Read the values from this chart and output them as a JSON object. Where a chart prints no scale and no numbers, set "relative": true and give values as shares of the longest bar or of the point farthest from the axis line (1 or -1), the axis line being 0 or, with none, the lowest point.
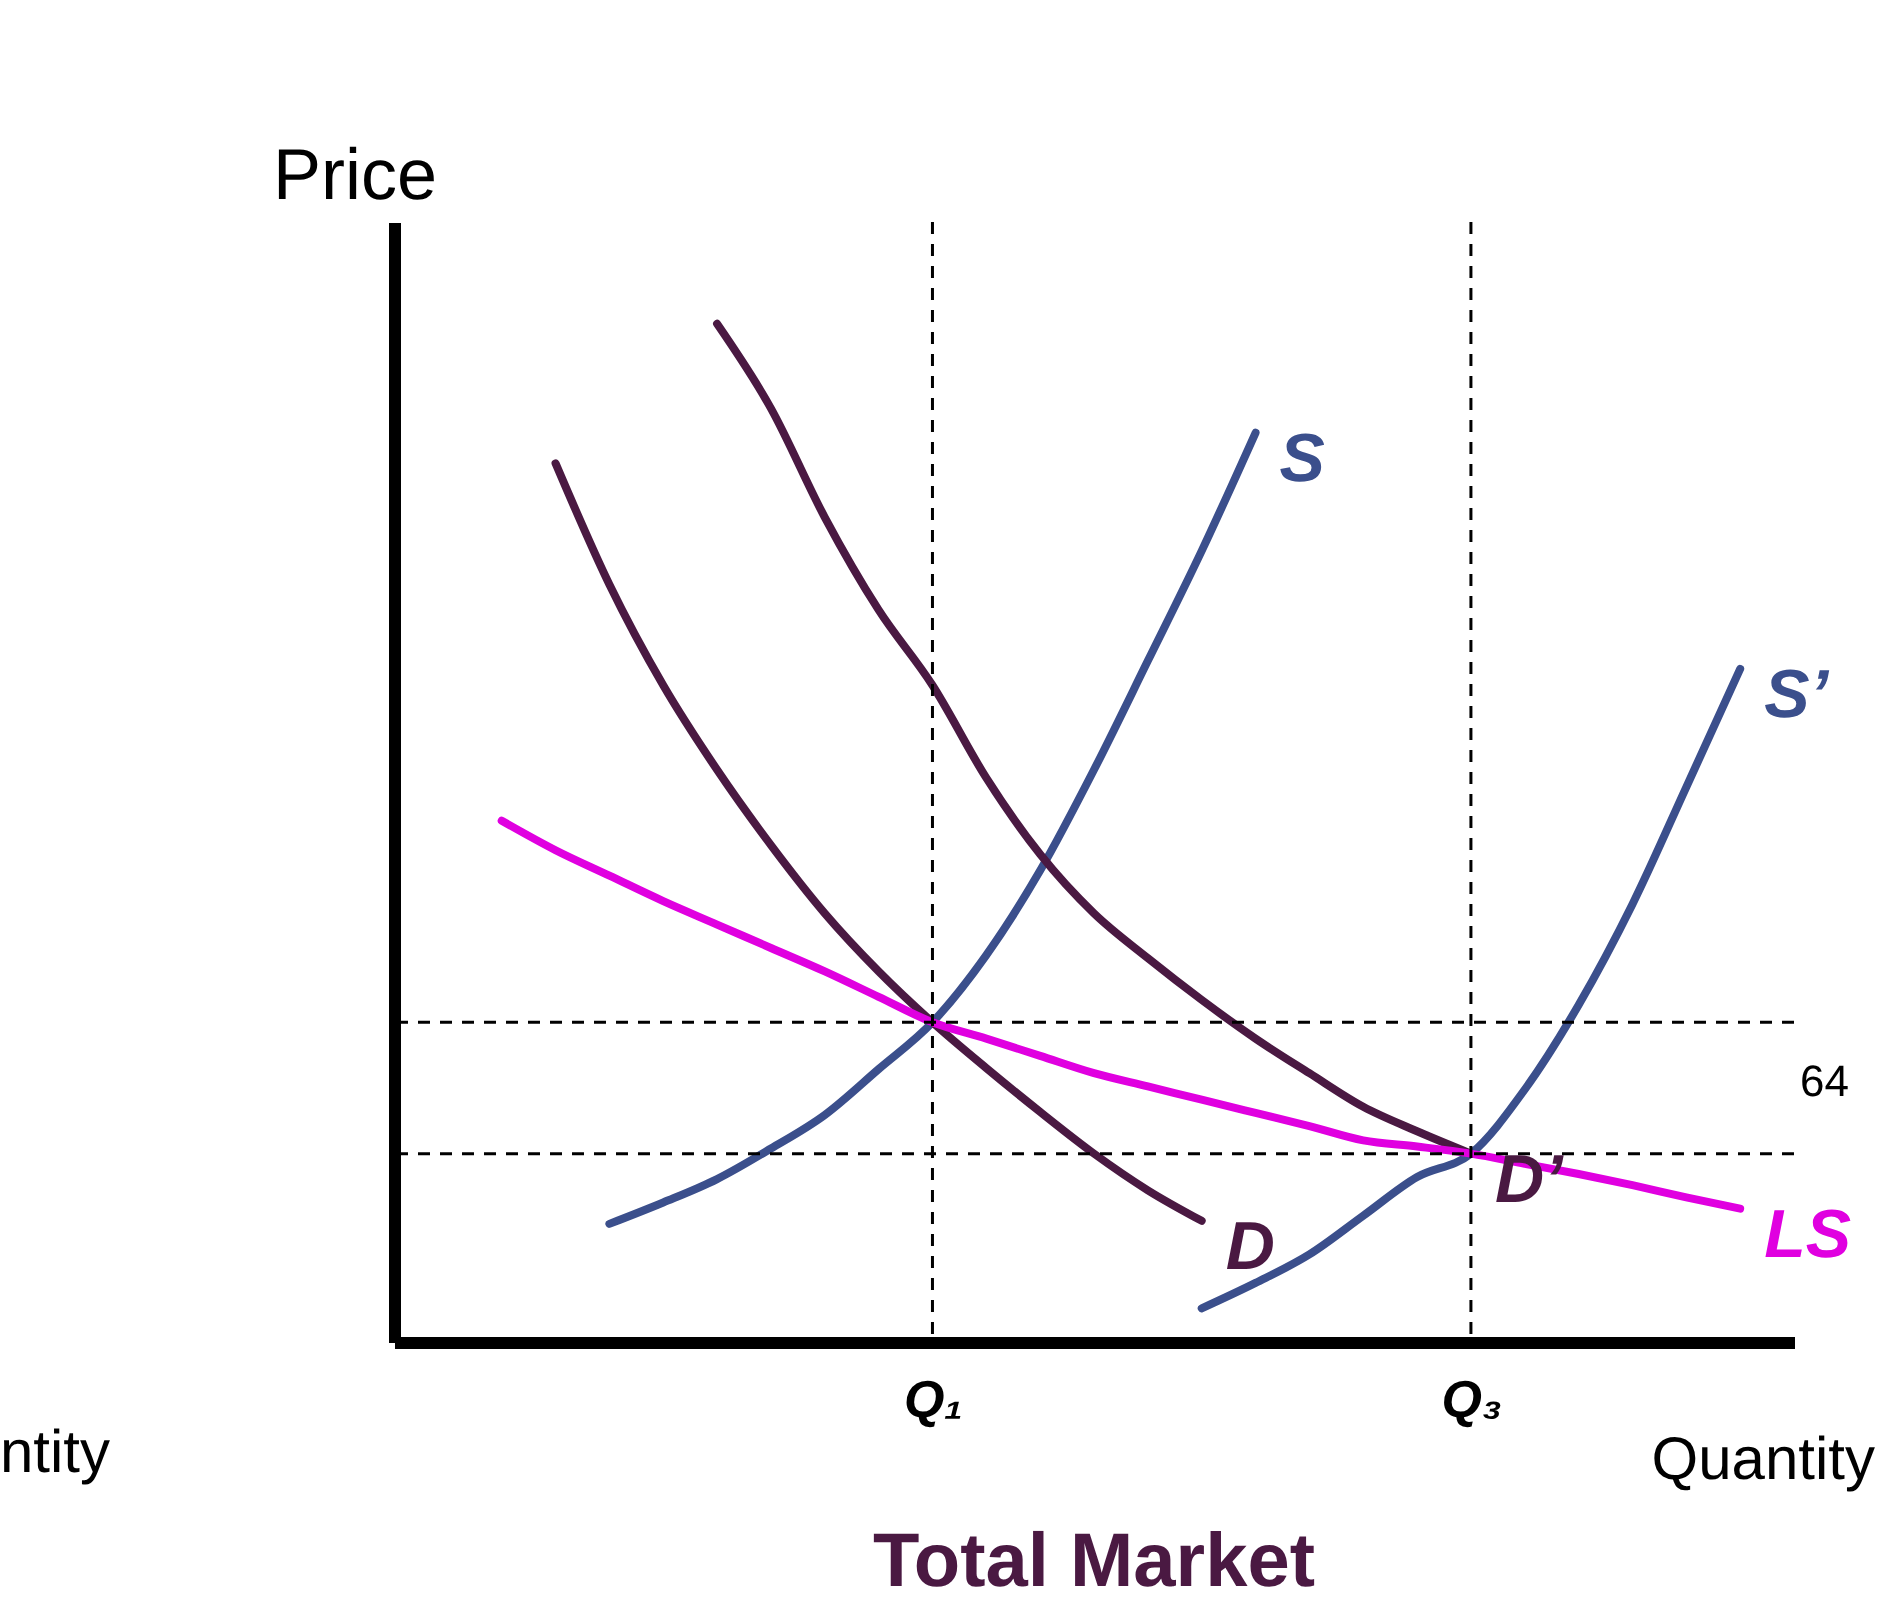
{
  "chart_data": {
    "type": "line",
    "title": "Total Market",
    "xlabel": "Quantity",
    "ylabel": "Price",
    "relative": true,
    "tick_labels": "x",
    "legend": false,
    "marker": "none",
    "line_style": "solid",
    "categories": [
      null,
      null,
      null,
      null,
      null,
      null,
      null,
      null,
      null,
      null,
      "Q₁",
      null,
      null,
      null,
      null,
      null,
      null,
      null,
      null,
      null,
      "Q₃",
      null,
      null,
      null,
      null,
      null,
      null
    ],
    "series": [
      {
        "name": "S",
        "color": "#3b4f8c",
        "values": [
          null,
          null,
          null,
          null,
          0.116,
          0.137,
          0.16,
          0.19,
          0.223,
          0.268,
          0.314,
          0.38,
          0.463,
          0.562,
          0.669,
          0.777,
          0.893,
          null,
          null,
          null,
          null,
          null,
          null,
          null,
          null,
          null,
          null
        ]
      },
      {
        "name": "S’",
        "color": "#3b4f8c",
        "values": [
          null,
          null,
          null,
          null,
          null,
          null,
          null,
          null,
          null,
          null,
          null,
          null,
          null,
          null,
          null,
          0.033,
          0.058,
          0.086,
          0.124,
          0.162,
          0.185,
          0.248,
          0.331,
          0.43,
          0.545,
          0.661,
          null
        ]
      },
      {
        "name": "D",
        "color": "#4a1942",
        "values": [
          null,
          null,
          null,
          0.863,
          0.744,
          0.645,
          0.562,
          0.488,
          0.421,
          0.364,
          0.314,
          0.269,
          0.226,
          0.185,
          0.149,
          0.119,
          null,
          null,
          null,
          null,
          null,
          null,
          null,
          null,
          null,
          null,
          null
        ]
      },
      {
        "name": "D’",
        "color": "#4a1942",
        "values": [
          null,
          null,
          null,
          null,
          null,
          null,
          1,
          0.917,
          0.81,
          0.719,
          0.645,
          0.554,
          0.479,
          0.421,
          0.377,
          0.336,
          0.298,
          0.264,
          0.231,
          0.207,
          0.185,
          null,
          null,
          null,
          null,
          null,
          null
        ]
      },
      {
        "name": "LS",
        "color": "#e000e0",
        "values": [
          null,
          null,
          0.512,
          0.483,
          0.458,
          0.433,
          0.41,
          0.387,
          0.364,
          0.339,
          0.314,
          0.298,
          0.281,
          0.264,
          0.251,
          0.238,
          0.225,
          0.212,
          0.198,
          0.192,
          0.185,
          0.175,
          0.165,
          0.154,
          0.142,
          0.131,
          null
        ]
      }
    ],
    "ref_lines": [
      {
        "axis": "y",
        "value": 0.314,
        "color": "#000000",
        "line_style": "dashed"
      },
      {
        "axis": "y",
        "value": 0.185,
        "color": "#000000",
        "line_style": "dashed"
      },
      {
        "axis": "x",
        "value": "Q₁",
        "color": "#000000",
        "line_style": "dashed"
      },
      {
        "axis": "x",
        "value": "Q₃",
        "color": "#000000",
        "line_style": "dashed"
      }
    ],
    "annotations": [
      "ntity",
      "64"
    ]
  }
}
